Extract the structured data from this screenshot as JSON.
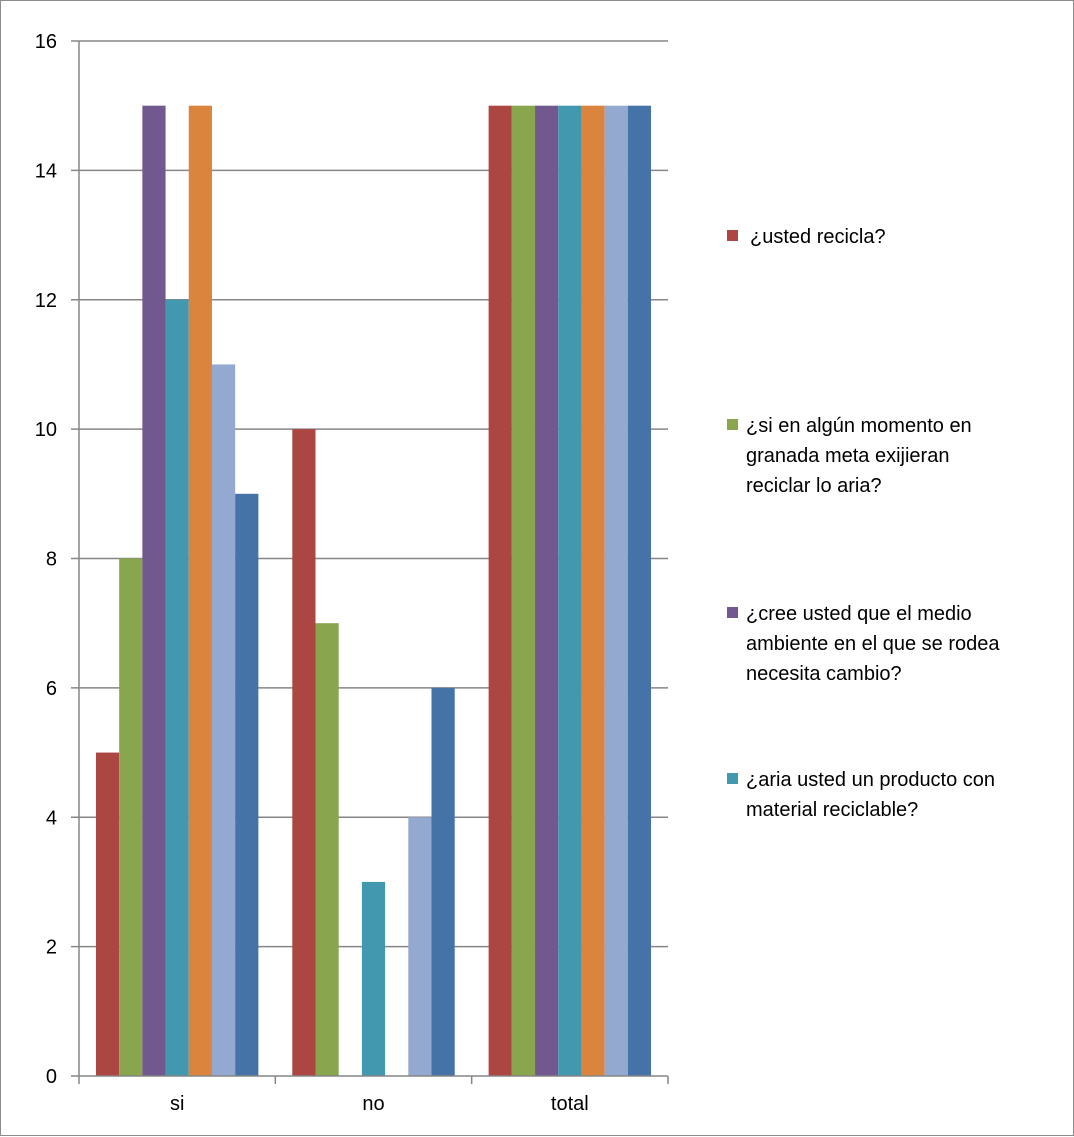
{
  "chart_data": {
    "type": "bar",
    "categories": [
      "si",
      "no",
      "total"
    ],
    "ylim": [
      0,
      16
    ],
    "yticks": [
      0,
      2,
      4,
      6,
      8,
      10,
      12,
      14,
      16
    ],
    "grid": true,
    "legend_position": "right",
    "series": [
      {
        "name": "¿usted recicla?",
        "color": "#AB4643",
        "values": [
          5,
          10,
          15
        ]
      },
      {
        "name": "¿si en algún momento en granada  meta exijieran reciclar lo aria?",
        "color": "#89A54E",
        "values": [
          8,
          7,
          15
        ]
      },
      {
        "name": "¿cree usted que el medio ambiente en el que se rodea necesita cambio?",
        "color": "#71588F",
        "values": [
          15,
          0,
          15
        ]
      },
      {
        "name": "¿aria usted un producto con material reciclable?",
        "color": "#4198AF",
        "values": [
          12,
          3,
          15
        ]
      },
      {
        "name": "",
        "color": "#DB843D",
        "values": [
          15,
          0,
          15
        ]
      },
      {
        "name": "",
        "color": "#93A9CF",
        "values": [
          11,
          4,
          15
        ]
      },
      {
        "name": "",
        "color": "#4572A7",
        "values": [
          9,
          6,
          15
        ]
      }
    ]
  },
  "legend": {
    "items": [
      {
        "label": "¿usted recicla?"
      },
      {
        "label": "¿si en algún momento en\ngranada  meta exijieran\nreciclar lo aria?"
      },
      {
        "label": "¿cree usted que el medio\nambiente en el que se rodea\nnecesita cambio?"
      },
      {
        "label": "¿aria usted un producto con\nmaterial reciclable?"
      }
    ]
  }
}
